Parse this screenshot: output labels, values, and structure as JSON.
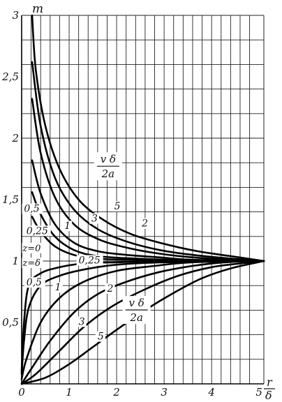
{
  "chart_data": {
    "type": "line",
    "title": "",
    "ylabel": "m",
    "xlabel_num": "r",
    "xlabel_den": "δ",
    "xlim": [
      0,
      5.1
    ],
    "ylim": [
      0,
      3
    ],
    "grid": true,
    "x_ticks": [
      {
        "v": 0,
        "label": "0"
      },
      {
        "v": 1,
        "label": "1"
      },
      {
        "v": 2,
        "label": "2"
      },
      {
        "v": 3,
        "label": "3"
      },
      {
        "v": 4,
        "label": "4"
      },
      {
        "v": 5,
        "label": "5"
      }
    ],
    "y_ticks": [
      {
        "v": 0.5,
        "label": "0,5"
      },
      {
        "v": 1,
        "label": "1"
      },
      {
        "v": 1.5,
        "label": "1,5"
      },
      {
        "v": 2,
        "label": "2"
      },
      {
        "v": 2.5,
        "label": "2,5"
      },
      {
        "v": 3,
        "label": "3"
      }
    ],
    "series": [
      {
        "name": "z=0, 5",
        "points": [
          [
            0.22,
            3.0
          ],
          [
            0.3,
            2.55
          ],
          [
            0.5,
            2.1
          ],
          [
            0.8,
            1.75
          ],
          [
            1.2,
            1.5
          ],
          [
            1.7,
            1.34
          ],
          [
            2.3,
            1.22
          ],
          [
            3.0,
            1.14
          ],
          [
            3.7,
            1.08
          ],
          [
            4.4,
            1.04
          ],
          [
            5.1,
            1.0
          ]
        ]
      },
      {
        "name": "z=0, 3",
        "points": [
          [
            0.22,
            2.62
          ],
          [
            0.4,
            2.1
          ],
          [
            0.7,
            1.68
          ],
          [
            1.1,
            1.42
          ],
          [
            1.6,
            1.26
          ],
          [
            2.2,
            1.16
          ],
          [
            2.9,
            1.09
          ],
          [
            3.6,
            1.05
          ],
          [
            4.4,
            1.02
          ],
          [
            5.1,
            1.0
          ]
        ]
      },
      {
        "name": "z=0, 2",
        "points": [
          [
            0.22,
            2.32
          ],
          [
            0.4,
            1.88
          ],
          [
            0.7,
            1.52
          ],
          [
            1.1,
            1.3
          ],
          [
            1.6,
            1.18
          ],
          [
            2.2,
            1.11
          ],
          [
            2.9,
            1.06
          ],
          [
            3.6,
            1.03
          ],
          [
            4.4,
            1.01
          ],
          [
            5.1,
            1.0
          ]
        ]
      },
      {
        "name": "z=0, 1",
        "points": [
          [
            0.22,
            1.82
          ],
          [
            0.4,
            1.55
          ],
          [
            0.7,
            1.3
          ],
          [
            1.1,
            1.15
          ],
          [
            1.6,
            1.08
          ],
          [
            2.2,
            1.05
          ],
          [
            2.9,
            1.03
          ],
          [
            3.6,
            1.01
          ],
          [
            5.1,
            1.0
          ]
        ]
      },
      {
        "name": "z=0, 0,5",
        "points": [
          [
            0.22,
            1.56
          ],
          [
            0.4,
            1.38
          ],
          [
            0.7,
            1.2
          ],
          [
            1.1,
            1.09
          ],
          [
            1.6,
            1.04
          ],
          [
            2.4,
            1.02
          ],
          [
            3.2,
            1.01
          ],
          [
            5.1,
            1.0
          ]
        ]
      },
      {
        "name": "z=0, 0,25",
        "points": [
          [
            0.22,
            1.36
          ],
          [
            0.4,
            1.24
          ],
          [
            0.7,
            1.12
          ],
          [
            1.1,
            1.05
          ],
          [
            1.6,
            1.02
          ],
          [
            2.4,
            1.01
          ],
          [
            5.1,
            1.0
          ]
        ]
      },
      {
        "name": "z=δ, 0,25",
        "points": [
          [
            0.0,
            0.1
          ],
          [
            0.05,
            0.5
          ],
          [
            0.15,
            0.8
          ],
          [
            0.4,
            0.9
          ],
          [
            0.8,
            0.95
          ],
          [
            1.3,
            0.98
          ],
          [
            2.0,
            0.99
          ],
          [
            3.0,
            1.0
          ],
          [
            5.1,
            1.0
          ]
        ]
      },
      {
        "name": "z=δ, 0,5",
        "points": [
          [
            0.0,
            0.08
          ],
          [
            0.05,
            0.35
          ],
          [
            0.15,
            0.62
          ],
          [
            0.4,
            0.8
          ],
          [
            0.8,
            0.88
          ],
          [
            1.3,
            0.93
          ],
          [
            2.0,
            0.97
          ],
          [
            3.0,
            0.99
          ],
          [
            5.1,
            1.0
          ]
        ]
      },
      {
        "name": "z=δ, 1",
        "points": [
          [
            0.0,
            0.04
          ],
          [
            0.1,
            0.2
          ],
          [
            0.4,
            0.5
          ],
          [
            0.8,
            0.7
          ],
          [
            1.3,
            0.83
          ],
          [
            2.0,
            0.92
          ],
          [
            2.8,
            0.96
          ],
          [
            3.6,
            0.99
          ],
          [
            5.1,
            1.0
          ]
        ]
      },
      {
        "name": "z=δ, 2",
        "points": [
          [
            0.0,
            0.0
          ],
          [
            0.2,
            0.12
          ],
          [
            0.6,
            0.35
          ],
          [
            1.1,
            0.58
          ],
          [
            1.6,
            0.73
          ],
          [
            2.2,
            0.83
          ],
          [
            2.9,
            0.91
          ],
          [
            3.6,
            0.96
          ],
          [
            4.3,
            0.99
          ],
          [
            5.1,
            1.0
          ]
        ]
      },
      {
        "name": "z=δ, 3",
        "points": [
          [
            0.0,
            0.0
          ],
          [
            0.3,
            0.08
          ],
          [
            0.8,
            0.27
          ],
          [
            1.3,
            0.46
          ],
          [
            1.9,
            0.63
          ],
          [
            2.6,
            0.77
          ],
          [
            3.3,
            0.88
          ],
          [
            4.0,
            0.95
          ],
          [
            4.6,
            0.98
          ],
          [
            5.1,
            1.0
          ]
        ]
      },
      {
        "name": "z=δ, 5",
        "points": [
          [
            0.0,
            0.0
          ],
          [
            0.5,
            0.05
          ],
          [
            1.0,
            0.16
          ],
          [
            1.5,
            0.3
          ],
          [
            2.0,
            0.44
          ],
          [
            2.6,
            0.6
          ],
          [
            3.2,
            0.74
          ],
          [
            3.8,
            0.86
          ],
          [
            4.4,
            0.94
          ],
          [
            5.1,
            1.0
          ]
        ]
      }
    ],
    "annotations": [
      {
        "text": "5",
        "x": 1.95,
        "y": 1.42
      },
      {
        "text": "3",
        "x": 1.47,
        "y": 1.32
      },
      {
        "text": "2",
        "x": 2.53,
        "y": 1.28
      },
      {
        "text": "1",
        "x": 0.9,
        "y": 1.26
      },
      {
        "text": "0,5",
        "x": 0.05,
        "y": 1.4
      },
      {
        "text": "0,25",
        "x": 0.1,
        "y": 1.22
      },
      {
        "text": "0,25",
        "x": 1.2,
        "y": 0.98
      },
      {
        "text": "0,5",
        "x": 0.1,
        "y": 0.8
      },
      {
        "text": "1",
        "x": 0.7,
        "y": 0.76
      },
      {
        "text": "2",
        "x": 1.8,
        "y": 0.75
      },
      {
        "text": "3",
        "x": 1.2,
        "y": 0.48
      },
      {
        "text": "5",
        "x": 1.6,
        "y": 0.36
      }
    ],
    "zone_labels": [
      {
        "text": "z=0",
        "x": 0.02,
        "y": 1.08
      },
      {
        "text": "z=δ",
        "x": 0.02,
        "y": 0.96
      }
    ],
    "param_labels": [
      {
        "num": "v δ",
        "den": "2a",
        "x": 1.6,
        "y": 1.8
      },
      {
        "num": "v δ",
        "den": "2a",
        "x": 2.2,
        "y": 0.63
      }
    ]
  }
}
